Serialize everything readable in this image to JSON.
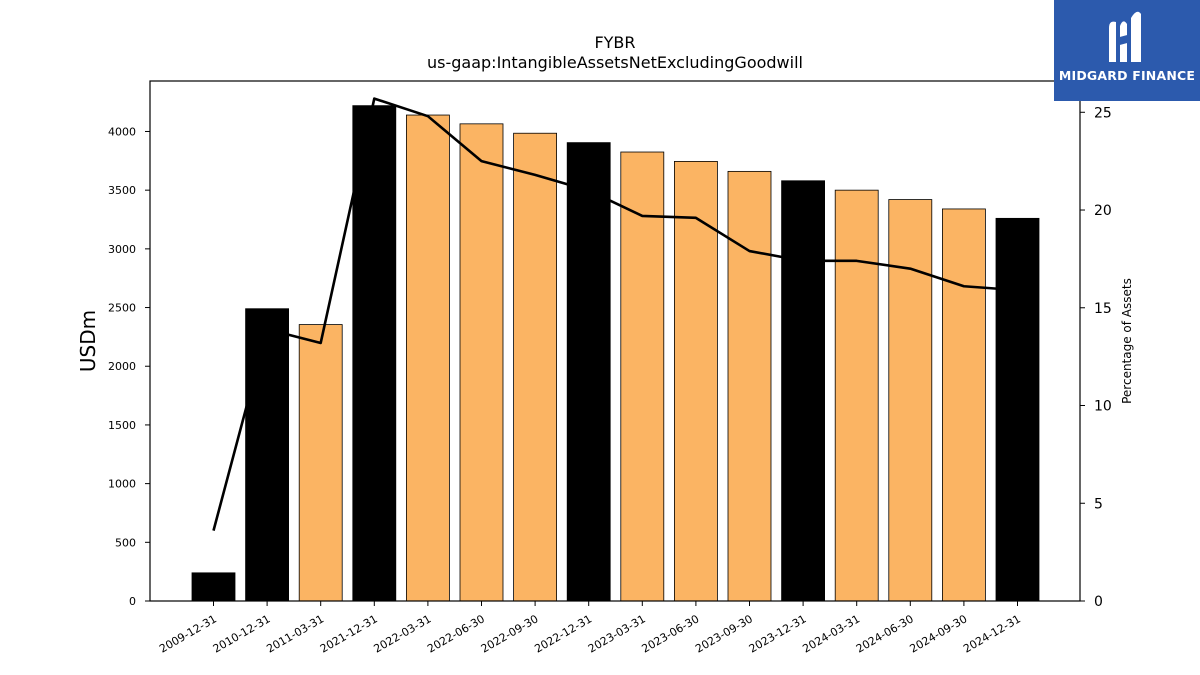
{
  "chart_data": {
    "type": "bar",
    "title": "FYBR",
    "subtitle": "us-gaap:IntangibleAssetsNetExcludingGoodwill",
    "ylabel": "USDm",
    "y2label": "Percentage of Assets",
    "ylim": [
      0,
      4430
    ],
    "y2lim": [
      0,
      26.6
    ],
    "yticks": [
      0,
      500,
      1000,
      1500,
      2000,
      2500,
      3000,
      3500,
      4000
    ],
    "y2ticks": [
      0,
      5,
      10,
      15,
      20,
      25
    ],
    "categories": [
      "2009-12-31",
      "2010-12-31",
      "2011-03-31",
      "2021-12-31",
      "2022-03-31",
      "2022-06-30",
      "2022-09-30",
      "2022-12-31",
      "2023-03-31",
      "2023-06-30",
      "2023-09-30",
      "2023-12-31",
      "2024-03-31",
      "2024-06-30",
      "2024-09-30",
      "2024-12-31"
    ],
    "series": [
      {
        "type": "bar",
        "values": [
          240,
          2490,
          2355,
          4220,
          4140,
          4065,
          3985,
          3905,
          3825,
          3745,
          3660,
          3580,
          3500,
          3420,
          3340,
          3260
        ],
        "colors": [
          "#000000",
          "#000000",
          "#fbb463",
          "#000000",
          "#fbb463",
          "#fbb463",
          "#fbb463",
          "#000000",
          "#fbb463",
          "#fbb463",
          "#fbb463",
          "#000000",
          "#fbb463",
          "#fbb463",
          "#fbb463",
          "#000000"
        ]
      },
      {
        "type": "line",
        "axis": "right",
        "color": "#000000",
        "values": [
          3.6,
          13.9,
          13.2,
          25.7,
          24.8,
          22.5,
          21.8,
          21.0,
          19.7,
          19.6,
          17.9,
          17.4,
          17.4,
          17.0,
          16.1,
          15.9
        ]
      }
    ],
    "grid": false,
    "legend": "none"
  },
  "logo": {
    "text": "MIDGARD FINANCE",
    "background": "#2c5aad",
    "icon": "midgard-logo-icon"
  }
}
